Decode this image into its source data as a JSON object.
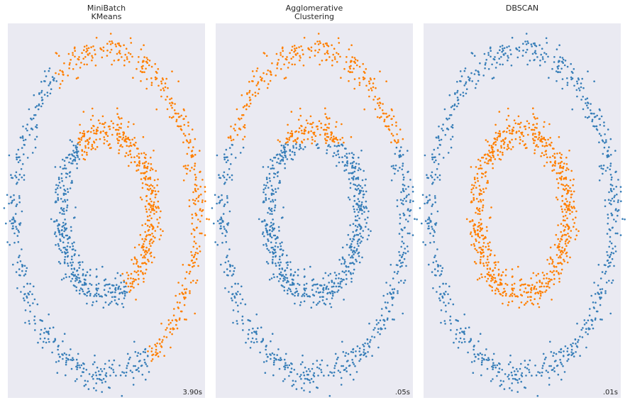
{
  "chart_data": [
    {
      "type": "scatter",
      "title": "MiniBatch\nKMeans",
      "time_label": "3.90s",
      "assignment": "split",
      "xlim": [
        -1.08,
        1.08
      ],
      "ylim": [
        -1.14,
        1.16
      ],
      "grid": false,
      "background": "#eaeaf2",
      "series": [
        {
          "color": "#377eb8"
        },
        {
          "color": "#ff7f00"
        }
      ]
    },
    {
      "type": "scatter",
      "title": "Agglomerative\nClustering",
      "time_label": ".05s",
      "assignment": "top_bottom",
      "xlim": [
        -1.08,
        1.08
      ],
      "ylim": [
        -1.14,
        1.16
      ],
      "grid": false,
      "background": "#eaeaf2",
      "series": [
        {
          "color": "#377eb8"
        },
        {
          "color": "#ff7f00"
        }
      ]
    },
    {
      "type": "scatter",
      "title": "DBSCAN",
      "time_label": ".01s",
      "assignment": "by_ring",
      "xlim": [
        -1.08,
        1.08
      ],
      "ylim": [
        -1.14,
        1.16
      ],
      "grid": false,
      "background": "#eaeaf2",
      "series": [
        {
          "color": "#377eb8"
        },
        {
          "color": "#ff7f00"
        }
      ]
    }
  ],
  "dataset": {
    "rings": [
      {
        "radius": 1.0,
        "count": 750
      },
      {
        "radius": 0.5,
        "count": 750
      }
    ],
    "noise": 0.05,
    "seed": 170
  }
}
